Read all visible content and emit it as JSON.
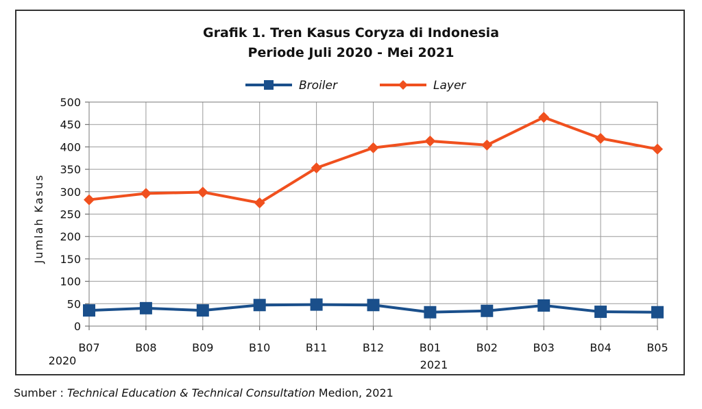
{
  "chart_data": {
    "type": "line",
    "title_line1": "Grafik 1. Tren Kasus Coryza di Indonesia",
    "title_line2": "Periode Juli 2020 - Mei 2021",
    "categories": [
      "B07",
      "B08",
      "B09",
      "B10",
      "B11",
      "B12",
      "B01",
      "B02",
      "B03",
      "B04",
      "B05"
    ],
    "year_labels": {
      "start": "2020",
      "mid": "2021"
    },
    "ylabel": "Jumlah Kasus",
    "xlabel": "",
    "ylim": [
      0,
      500
    ],
    "yticks": [
      0,
      50,
      100,
      150,
      200,
      250,
      300,
      350,
      400,
      450,
      500
    ],
    "grid": true,
    "legend_position": "top",
    "series": [
      {
        "name": "Broiler",
        "color": "#1a4f8b",
        "marker": "square",
        "values": [
          35,
          40,
          35,
          47,
          48,
          47,
          31,
          34,
          46,
          32,
          31
        ]
      },
      {
        "name": "Layer",
        "color": "#f0501e",
        "marker": "diamond",
        "values": [
          282,
          296,
          299,
          275,
          353,
          398,
          413,
          404,
          466,
          419,
          395
        ]
      }
    ]
  },
  "source": {
    "prefix": "Sumber : ",
    "italic": "Technical Education & Technical Consultation",
    "suffix": " Medion, 2021"
  }
}
